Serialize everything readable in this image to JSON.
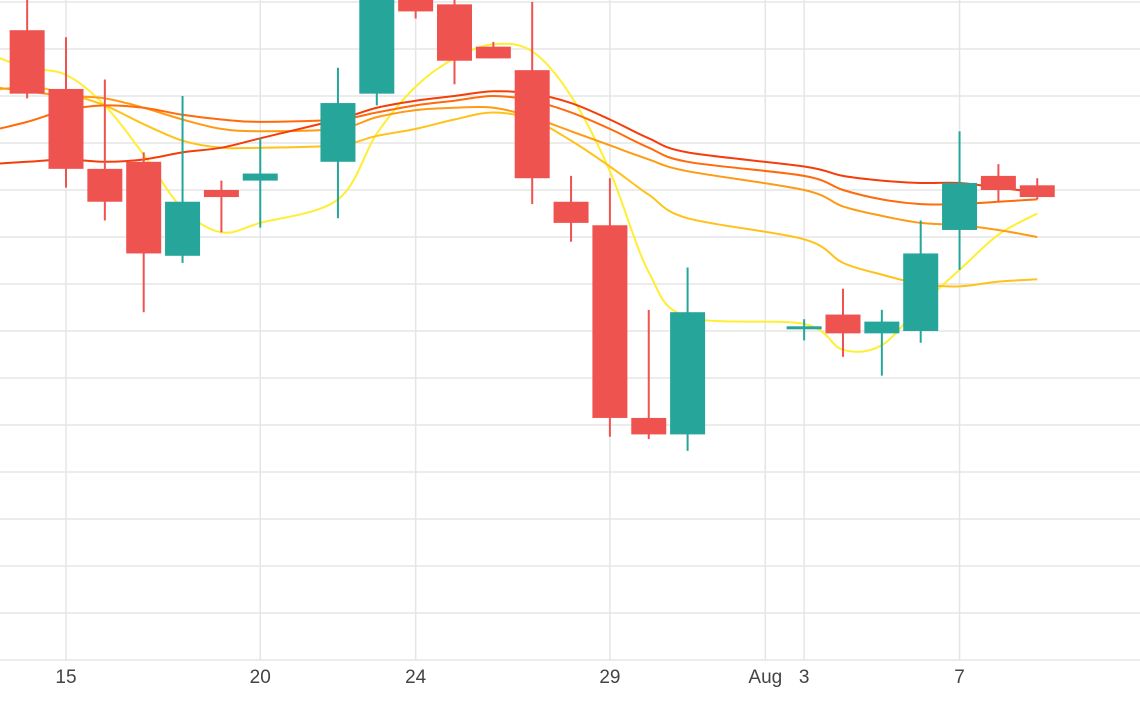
{
  "chart_data": {
    "type": "candlestick",
    "x_tick_labels": [
      {
        "x": "2020-07-15",
        "label": "15"
      },
      {
        "x": "2020-07-20",
        "label": "20"
      },
      {
        "x": "2020-07-24",
        "label": "24"
      },
      {
        "x": "2020-07-29",
        "label": "29"
      },
      {
        "x": "2020-08-02",
        "label": "Aug"
      },
      {
        "x": "2020-08-03",
        "label": "3"
      },
      {
        "x": "2020-08-07",
        "label": "7"
      }
    ],
    "grid": true,
    "colors": {
      "increasing": "#26a69a",
      "decreasing": "#ef5350",
      "grid": "#e5e5e5",
      "ma_series": [
        "#ffee33",
        "#ffc21a",
        "#ff9a14",
        "#ff6a0a",
        "#f53d0a"
      ]
    },
    "candles": [
      {
        "date": "2020-07-14",
        "open": 26.8,
        "high": 28.3,
        "low": 23.9,
        "close": 24.1
      },
      {
        "date": "2020-07-15",
        "open": 24.3,
        "high": 26.5,
        "low": 20.1,
        "close": 20.9
      },
      {
        "date": "2020-07-16",
        "open": 20.9,
        "high": 24.7,
        "low": 18.7,
        "close": 19.5
      },
      {
        "date": "2020-07-17",
        "open": 21.2,
        "high": 21.6,
        "low": 14.8,
        "close": 17.3
      },
      {
        "date": "2020-07-18",
        "open": 17.2,
        "high": 24.0,
        "low": 16.9,
        "close": 19.5
      },
      {
        "date": "2020-07-19",
        "open": 20.0,
        "high": 20.4,
        "low": 18.2,
        "close": 19.7
      },
      {
        "date": "2020-07-20",
        "open": 20.4,
        "high": 22.2,
        "low": 18.4,
        "close": 20.7
      },
      {
        "date": "2020-07-22",
        "open": 21.2,
        "high": 25.2,
        "low": 18.8,
        "close": 23.7
      },
      {
        "date": "2020-07-23",
        "open": 24.1,
        "high": 29.5,
        "low": 23.6,
        "close": 28.7
      },
      {
        "date": "2020-07-24",
        "open": 28.5,
        "high": 31.4,
        "low": 27.3,
        "close": 27.6
      },
      {
        "date": "2020-07-25",
        "open": 27.9,
        "high": 28.6,
        "low": 24.5,
        "close": 25.5
      },
      {
        "date": "2020-07-26",
        "open": 26.1,
        "high": 26.3,
        "low": 25.6,
        "close": 25.6
      },
      {
        "date": "2020-07-27",
        "open": 25.1,
        "high": 28.0,
        "low": 19.4,
        "close": 20.5
      },
      {
        "date": "2020-07-28",
        "open": 19.5,
        "high": 20.6,
        "low": 17.8,
        "close": 18.6
      },
      {
        "date": "2020-07-29",
        "open": 18.5,
        "high": 20.5,
        "low": 9.5,
        "close": 10.3
      },
      {
        "date": "2020-07-30",
        "open": 10.3,
        "high": 14.9,
        "low": 9.4,
        "close": 9.6
      },
      {
        "date": "2020-07-31",
        "open": 9.6,
        "high": 16.7,
        "low": 8.9,
        "close": 14.8
      },
      {
        "date": "2020-08-03",
        "open": 14.2,
        "high": 14.5,
        "low": 13.6,
        "close": 14.2
      },
      {
        "date": "2020-08-04",
        "open": 14.7,
        "high": 15.8,
        "low": 12.9,
        "close": 13.9
      },
      {
        "date": "2020-08-05",
        "open": 13.9,
        "high": 14.9,
        "low": 12.1,
        "close": 14.4
      },
      {
        "date": "2020-08-06",
        "open": 14.0,
        "high": 18.7,
        "low": 13.5,
        "close": 17.3
      },
      {
        "date": "2020-08-07",
        "open": 18.3,
        "high": 22.5,
        "low": 16.6,
        "close": 20.3
      },
      {
        "date": "2020-08-08",
        "open": 20.6,
        "high": 21.1,
        "low": 19.5,
        "close": 20.0
      },
      {
        "date": "2020-08-09",
        "open": 20.2,
        "high": 20.5,
        "low": 19.6,
        "close": 19.7
      }
    ],
    "ma_lines": [
      {
        "points": [
          [
            "2020-07-13",
            25.8
          ],
          [
            "2020-07-14",
            25.2
          ],
          [
            "2020-07-15",
            24.9
          ],
          [
            "2020-07-16",
            23.6
          ],
          [
            "2020-07-17",
            21.5
          ],
          [
            "2020-07-18",
            19.2
          ],
          [
            "2020-07-19",
            18.2
          ],
          [
            "2020-07-20",
            18.6
          ],
          [
            "2020-07-22",
            19.6
          ],
          [
            "2020-07-23",
            22.4
          ],
          [
            "2020-07-24",
            24.4
          ],
          [
            "2020-07-25",
            25.6
          ],
          [
            "2020-07-26",
            26.2
          ],
          [
            "2020-07-27",
            25.9
          ],
          [
            "2020-07-28",
            24.0
          ],
          [
            "2020-07-29",
            20.8
          ],
          [
            "2020-07-30",
            16.5
          ],
          [
            "2020-07-31",
            14.6
          ],
          [
            "2020-08-03",
            14.3
          ],
          [
            "2020-08-04",
            13.2
          ],
          [
            "2020-08-05",
            13.4
          ],
          [
            "2020-08-06",
            15.1
          ],
          [
            "2020-08-07",
            16.6
          ],
          [
            "2020-08-08",
            18.1
          ],
          [
            "2020-08-09",
            19.0
          ]
        ]
      },
      {
        "points": [
          [
            "2020-07-13",
            24.2
          ],
          [
            "2020-07-14",
            24.4
          ],
          [
            "2020-07-15",
            24.1
          ],
          [
            "2020-07-16",
            23.6
          ],
          [
            "2020-07-17",
            22.8
          ],
          [
            "2020-07-18",
            22.1
          ],
          [
            "2020-07-19",
            21.8
          ],
          [
            "2020-07-20",
            21.8
          ],
          [
            "2020-07-22",
            21.9
          ],
          [
            "2020-07-23",
            22.3
          ],
          [
            "2020-07-24",
            22.6
          ],
          [
            "2020-07-25",
            23.0
          ],
          [
            "2020-07-26",
            23.3
          ],
          [
            "2020-07-27",
            23.0
          ],
          [
            "2020-07-28",
            22.1
          ],
          [
            "2020-07-29",
            21.0
          ],
          [
            "2020-07-30",
            19.8
          ],
          [
            "2020-07-31",
            18.8
          ],
          [
            "2020-08-03",
            17.9
          ],
          [
            "2020-08-04",
            16.9
          ],
          [
            "2020-08-05",
            16.4
          ],
          [
            "2020-08-06",
            16.0
          ],
          [
            "2020-08-07",
            15.9
          ],
          [
            "2020-08-08",
            16.1
          ],
          [
            "2020-08-09",
            16.2
          ]
        ]
      },
      {
        "points": [
          [
            "2020-07-13",
            24.4
          ],
          [
            "2020-07-14",
            24.2
          ],
          [
            "2020-07-15",
            24.0
          ],
          [
            "2020-07-16",
            23.9
          ],
          [
            "2020-07-17",
            23.5
          ],
          [
            "2020-07-18",
            23.0
          ],
          [
            "2020-07-19",
            22.6
          ],
          [
            "2020-07-20",
            22.5
          ],
          [
            "2020-07-22",
            22.6
          ],
          [
            "2020-07-23",
            23.1
          ],
          [
            "2020-07-24",
            23.4
          ],
          [
            "2020-07-25",
            23.5
          ],
          [
            "2020-07-26",
            23.5
          ],
          [
            "2020-07-27",
            23.1
          ],
          [
            "2020-07-28",
            22.5
          ],
          [
            "2020-07-29",
            21.9
          ],
          [
            "2020-07-30",
            21.3
          ],
          [
            "2020-07-31",
            20.8
          ],
          [
            "2020-08-03",
            20.0
          ],
          [
            "2020-08-04",
            19.3
          ],
          [
            "2020-08-05",
            18.9
          ],
          [
            "2020-08-06",
            18.6
          ],
          [
            "2020-08-07",
            18.5
          ],
          [
            "2020-08-08",
            18.3
          ],
          [
            "2020-08-09",
            18.0
          ]
        ]
      },
      {
        "points": [
          [
            "2020-07-13",
            22.5
          ],
          [
            "2020-07-14",
            22.9
          ],
          [
            "2020-07-15",
            23.4
          ],
          [
            "2020-07-16",
            23.6
          ],
          [
            "2020-07-17",
            23.5
          ],
          [
            "2020-07-18",
            23.2
          ],
          [
            "2020-07-19",
            23.0
          ],
          [
            "2020-07-20",
            22.9
          ],
          [
            "2020-07-22",
            23.0
          ],
          [
            "2020-07-23",
            23.3
          ],
          [
            "2020-07-24",
            23.6
          ],
          [
            "2020-07-25",
            23.8
          ],
          [
            "2020-07-26",
            24.0
          ],
          [
            "2020-07-27",
            23.8
          ],
          [
            "2020-07-28",
            23.3
          ],
          [
            "2020-07-29",
            22.6
          ],
          [
            "2020-07-30",
            21.8
          ],
          [
            "2020-07-31",
            21.2
          ],
          [
            "2020-08-03",
            20.6
          ],
          [
            "2020-08-04",
            20.0
          ],
          [
            "2020-08-05",
            19.6
          ],
          [
            "2020-08-06",
            19.4
          ],
          [
            "2020-08-07",
            19.4
          ],
          [
            "2020-08-08",
            19.5
          ],
          [
            "2020-08-09",
            19.6
          ]
        ]
      },
      {
        "points": [
          [
            "2020-07-13",
            21.1
          ],
          [
            "2020-07-14",
            21.2
          ],
          [
            "2020-07-15",
            21.3
          ],
          [
            "2020-07-16",
            21.2
          ],
          [
            "2020-07-17",
            21.3
          ],
          [
            "2020-07-18",
            21.6
          ],
          [
            "2020-07-19",
            21.8
          ],
          [
            "2020-07-20",
            22.2
          ],
          [
            "2020-07-22",
            23.0
          ],
          [
            "2020-07-23",
            23.5
          ],
          [
            "2020-07-24",
            23.8
          ],
          [
            "2020-07-25",
            24.0
          ],
          [
            "2020-07-26",
            24.2
          ],
          [
            "2020-07-27",
            24.1
          ],
          [
            "2020-07-28",
            23.7
          ],
          [
            "2020-07-29",
            23.0
          ],
          [
            "2020-07-30",
            22.2
          ],
          [
            "2020-07-31",
            21.6
          ],
          [
            "2020-08-03",
            21.0
          ],
          [
            "2020-08-04",
            20.6
          ],
          [
            "2020-08-05",
            20.4
          ],
          [
            "2020-08-06",
            20.3
          ],
          [
            "2020-08-07",
            20.3
          ],
          [
            "2020-08-08",
            20.1
          ],
          [
            "2020-08-09",
            19.9
          ]
        ]
      }
    ]
  }
}
